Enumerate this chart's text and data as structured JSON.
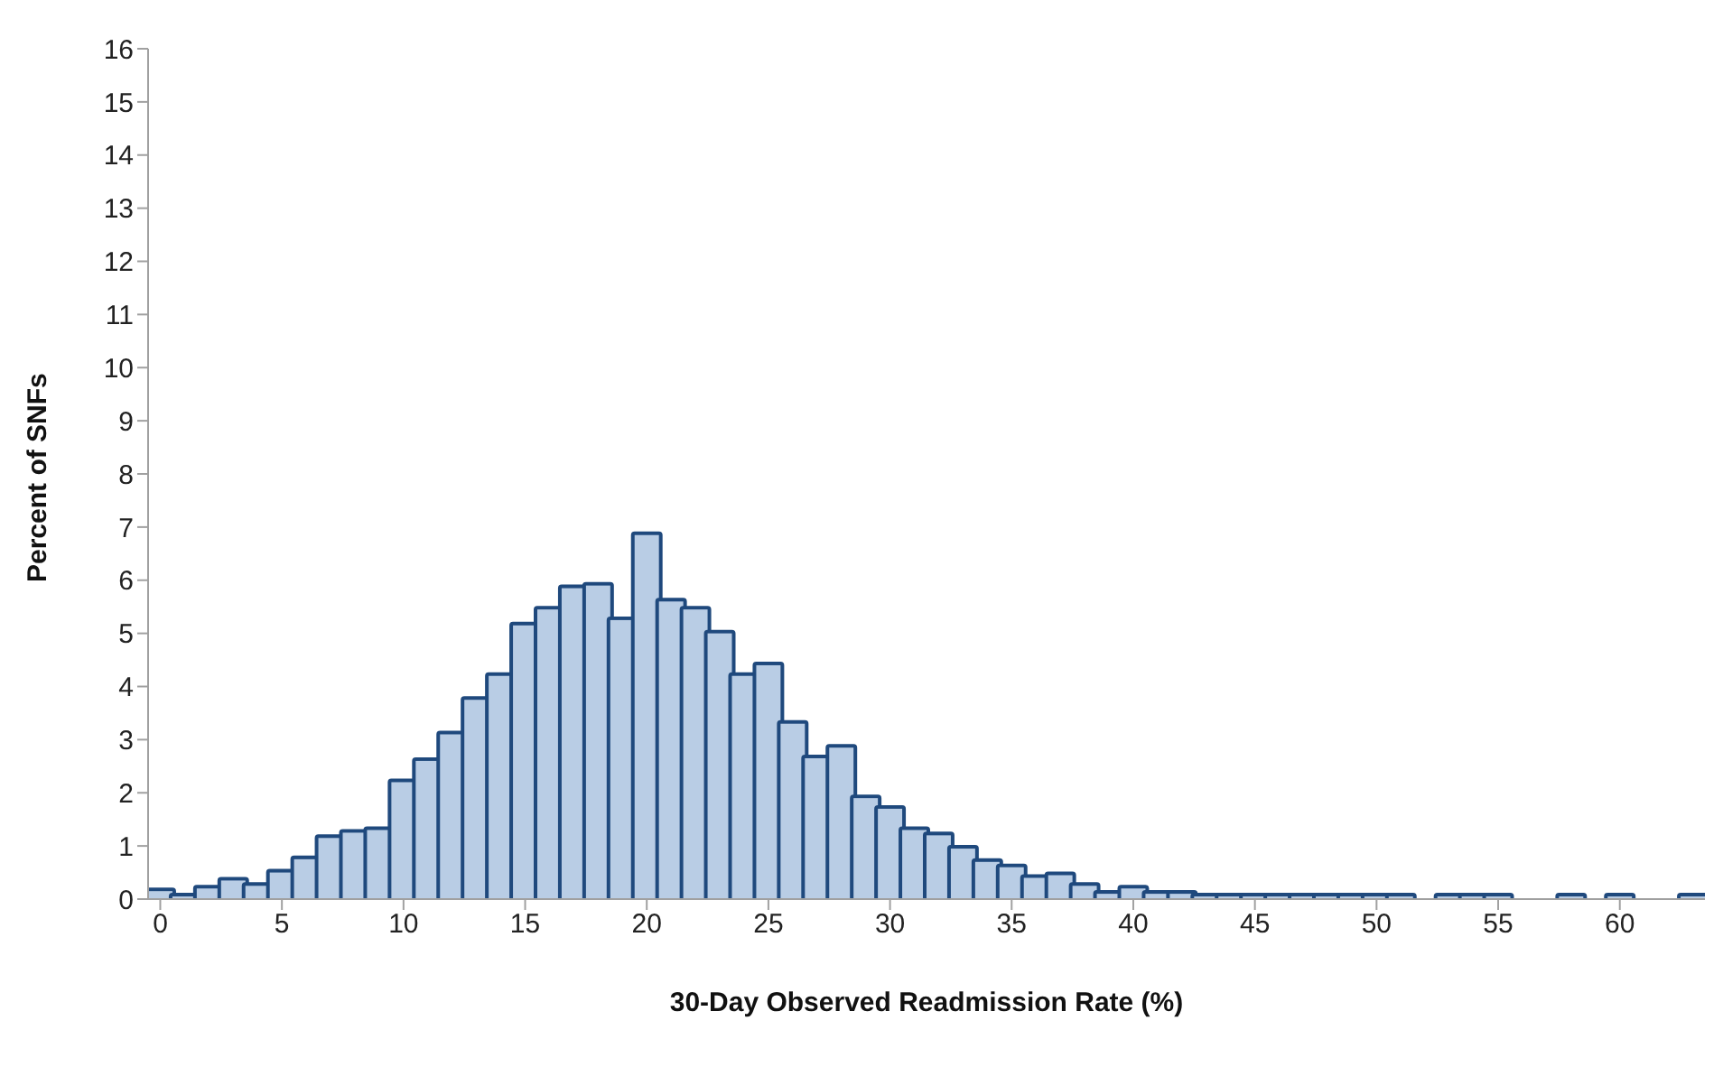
{
  "chart_data": {
    "type": "histogram",
    "xlabel": "30-Day Observed Readmission Rate (%)",
    "ylabel": "Percent of SNFs",
    "bins": [
      -0.5,
      0.5,
      1.5,
      2.5,
      3.5,
      4.5,
      5.5,
      6.5,
      7.5,
      8.5,
      9.5,
      10.5,
      11.5,
      12.5,
      13.5,
      14.5,
      15.5,
      16.5,
      17.5,
      18.5,
      19.5,
      20.5,
      21.5,
      22.5,
      23.5,
      24.5,
      25.5,
      26.5,
      27.5,
      28.5,
      29.5,
      30.5,
      31.5,
      32.5,
      33.5,
      34.5,
      35.5,
      36.5,
      37.5,
      38.5,
      39.5,
      40.5,
      41.5,
      42.5,
      43.5,
      44.5,
      45.5,
      46.5,
      47.5,
      48.5,
      49.5,
      50.5,
      51.5,
      52.5,
      53.5,
      54.5,
      55.5,
      56.5,
      57.5,
      58.5,
      59.5,
      60.5,
      61.5,
      62.5,
      63.5
    ],
    "values": [
      0.15,
      0.05,
      0.2,
      0.35,
      0.25,
      0.5,
      0.75,
      1.15,
      1.25,
      1.3,
      2.2,
      2.6,
      3.1,
      3.75,
      4.2,
      5.15,
      5.45,
      5.85,
      5.9,
      5.25,
      6.85,
      5.6,
      5.45,
      5.0,
      4.2,
      4.4,
      3.3,
      2.65,
      2.85,
      1.9,
      1.7,
      1.3,
      1.2,
      0.95,
      0.7,
      0.6,
      0.4,
      0.45,
      0.25,
      0.1,
      0.2,
      0.1,
      0.1,
      0.05,
      0.05,
      0.05,
      0.05,
      0.05,
      0.05,
      0.05,
      0.05,
      0.05,
      0,
      0.05,
      0.05,
      0.05,
      0,
      0,
      0.05,
      0,
      0.05,
      0,
      0,
      0.05
    ],
    "color": "#b9cde5",
    "xlim": [
      -0.5,
      63.5
    ],
    "xticks": [
      0,
      5,
      10,
      15,
      20,
      25,
      30,
      35,
      40,
      45,
      50,
      55,
      60
    ],
    "ylim": [
      0,
      16
    ],
    "yticks": [
      0,
      1,
      2,
      3,
      4,
      5,
      6,
      7,
      8,
      9,
      10,
      11,
      12,
      13,
      14,
      15,
      16
    ]
  }
}
